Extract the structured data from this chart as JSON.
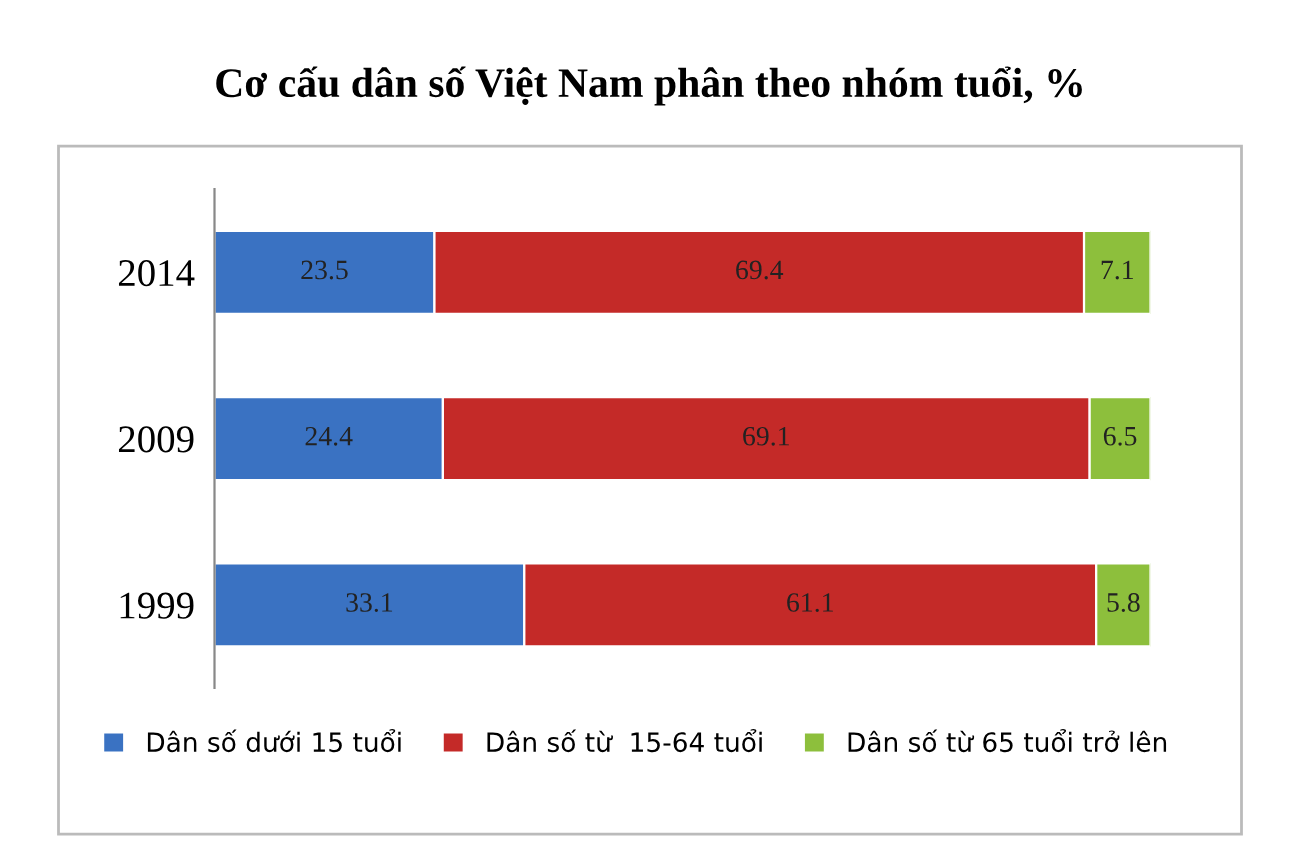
{
  "chart_data": {
    "type": "bar",
    "orientation": "horizontal",
    "stacked": true,
    "title": "Cơ cấu dân số Việt Nam phân theo nhóm tuổi, %",
    "categories": [
      "2014",
      "2009",
      "1999"
    ],
    "series": [
      {
        "name": "Dân số dưới 15 tuổi",
        "color": "#3a72c2",
        "values": [
          23.5,
          24.4,
          33.1
        ]
      },
      {
        "name": "Dân số từ  15-64 tuổi",
        "color": "#c42a28",
        "values": [
          69.4,
          69.1,
          61.1
        ]
      },
      {
        "name": "Dân số từ 65 tuổi trở lên",
        "color": "#8dbf3c",
        "values": [
          7.1,
          6.5,
          5.8
        ]
      }
    ],
    "xlim": [
      0,
      100
    ],
    "data_labels": true,
    "tick_labels": "y",
    "legend": "bottom",
    "grid": false
  }
}
